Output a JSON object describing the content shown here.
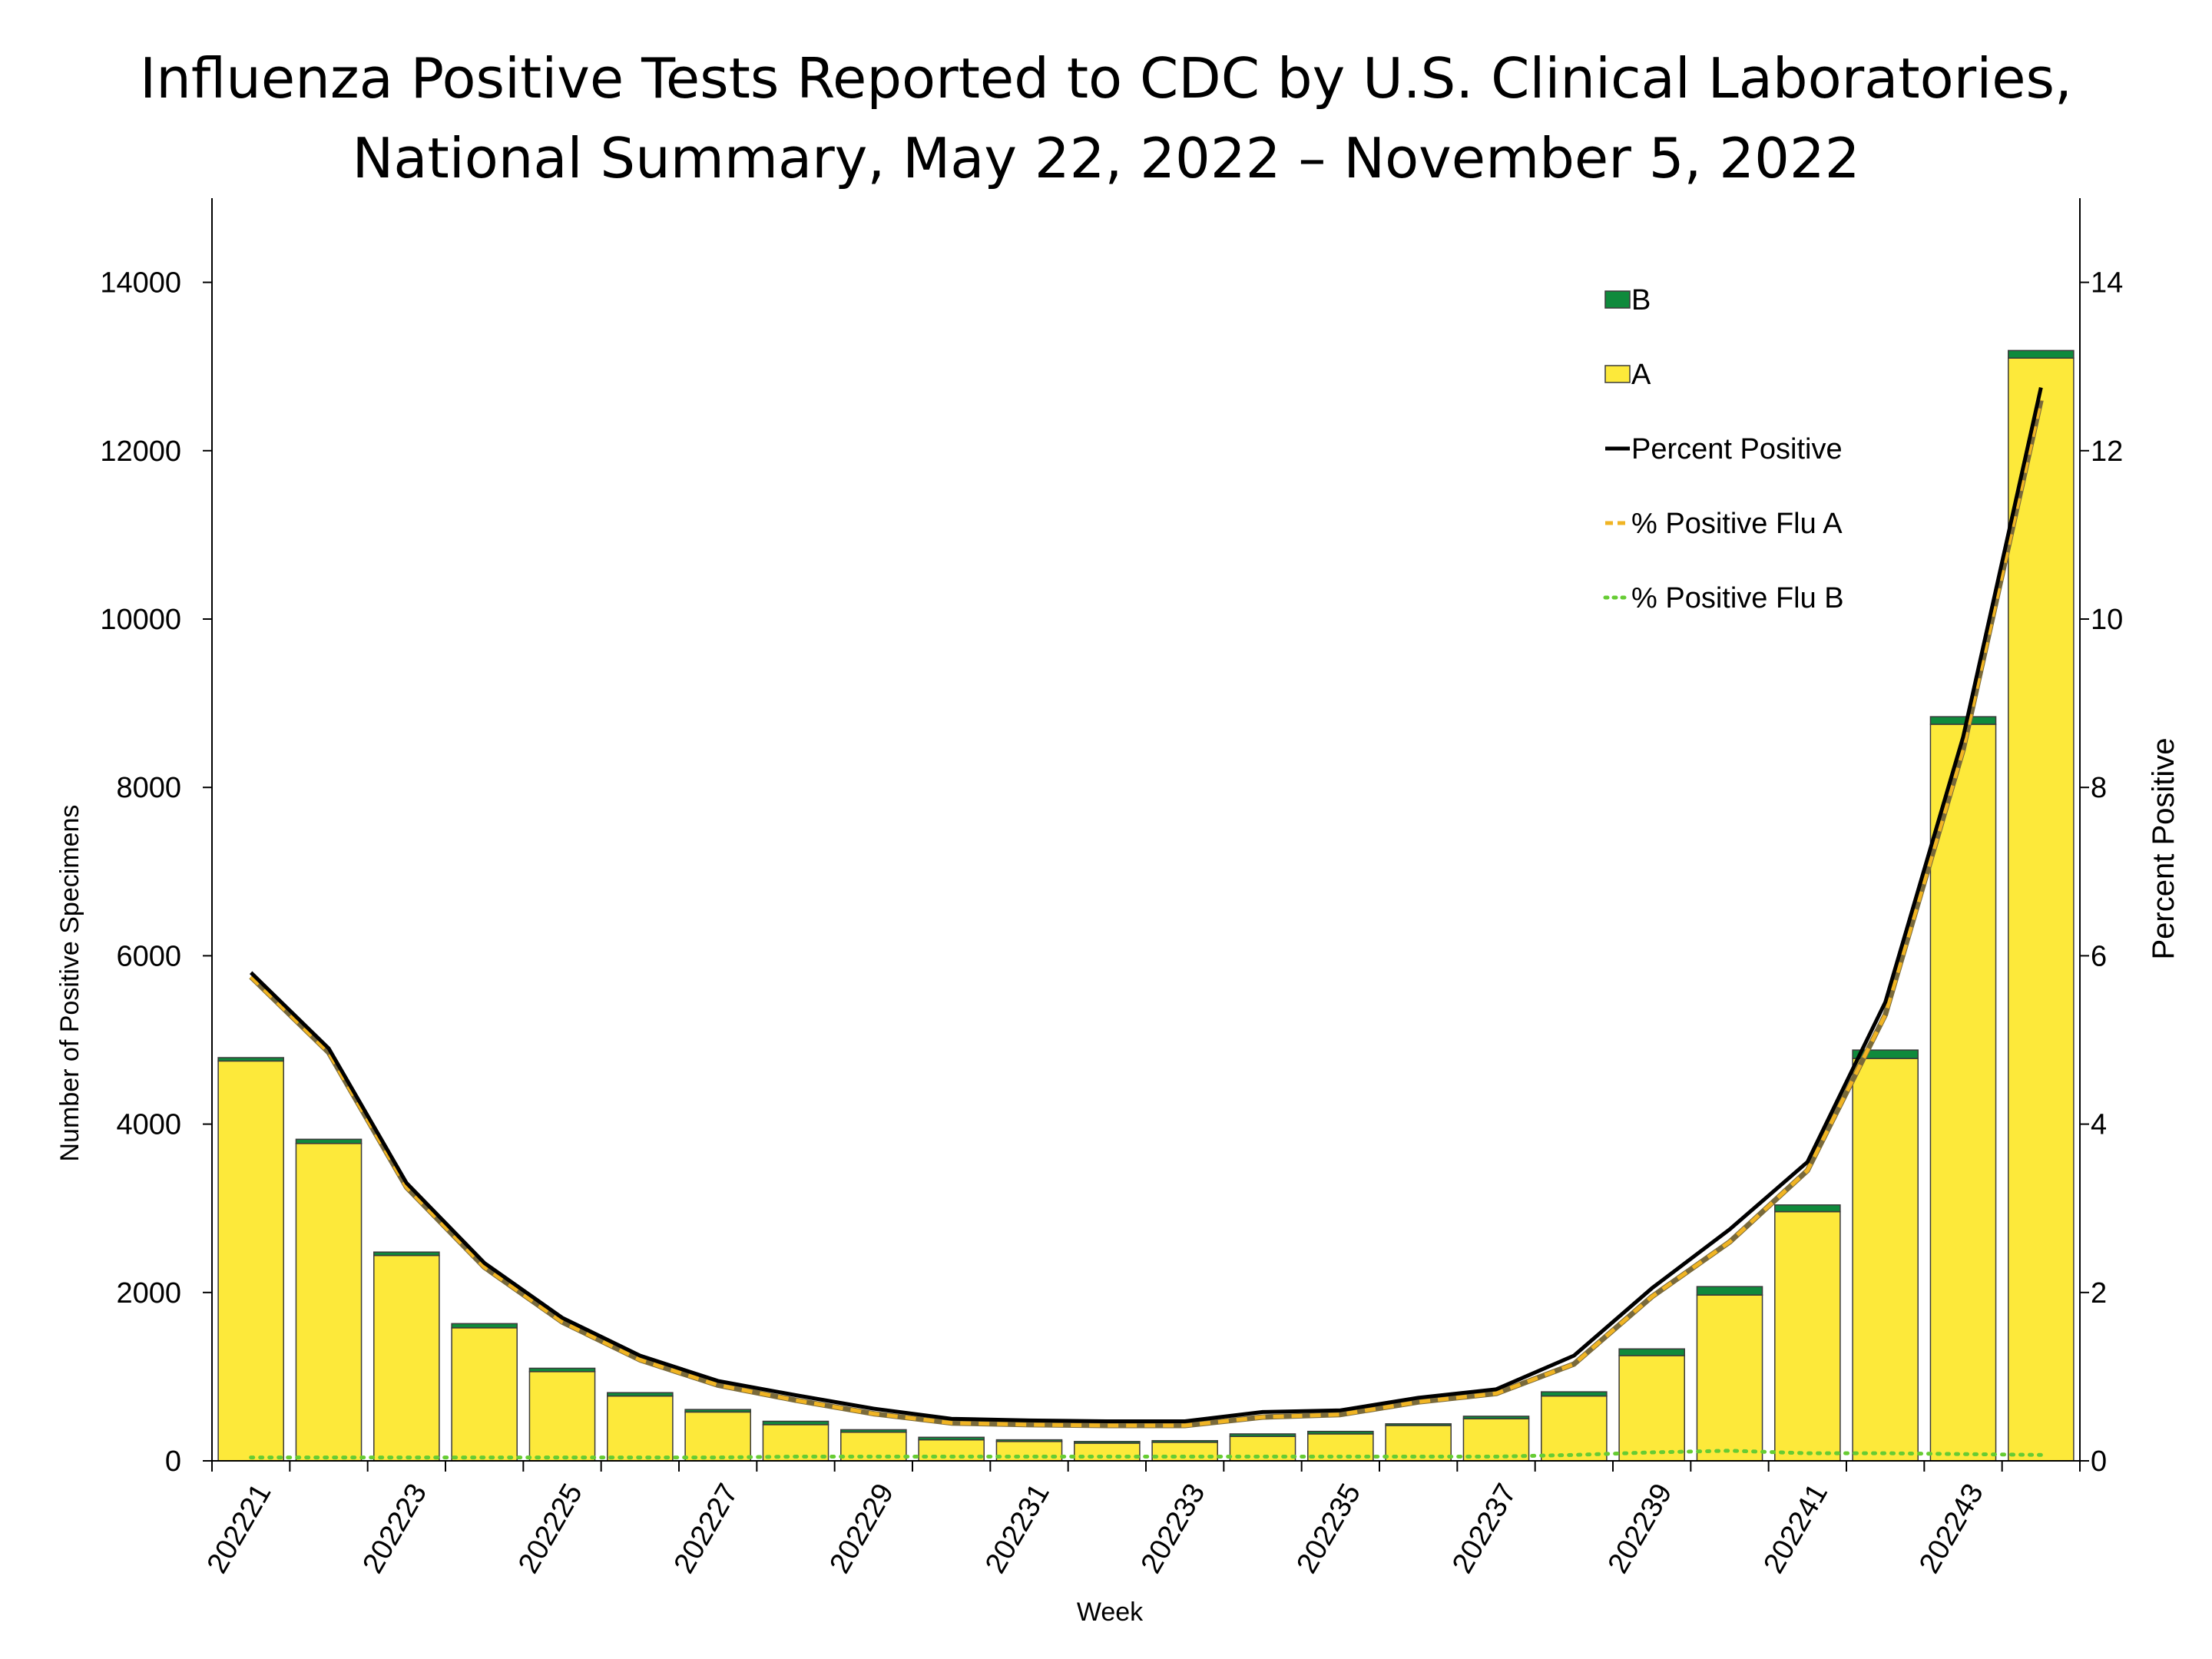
{
  "title": {
    "line1": "Influenza Positive Tests Reported to CDC by U.S. Clinical Laboratories,",
    "line2": "National Summary, May 22, 2022 – November 5, 2022"
  },
  "chart_data": {
    "type": "bar",
    "title": "Influenza Positive Tests Reported to CDC by U.S. Clinical Laboratories, National Summary, May 22, 2022 – November 5, 2022",
    "xlabel": "Week",
    "ylabel": "Number of Positive Specimens",
    "y2label": "Percent Positive",
    "ylim": [
      0,
      15000
    ],
    "y2lim": [
      0,
      15
    ],
    "yticks": [
      0,
      2000,
      4000,
      6000,
      8000,
      10000,
      12000,
      14000
    ],
    "y2ticks": [
      0,
      2,
      4,
      6,
      8,
      10,
      12,
      14
    ],
    "legend_position": "top-right",
    "categories": [
      "202221",
      "202222",
      "202223",
      "202224",
      "202225",
      "202226",
      "202227",
      "202228",
      "202229",
      "202230",
      "202231",
      "202232",
      "202233",
      "202234",
      "202235",
      "202236",
      "202237",
      "202238",
      "202239",
      "202240",
      "202241",
      "202242",
      "202243",
      "202244"
    ],
    "xtick_labels": [
      "202221",
      "202223",
      "202225",
      "202227",
      "202229",
      "202231",
      "202233",
      "202235",
      "202237",
      "202239",
      "202241",
      "202243"
    ],
    "series": [
      {
        "name": "B",
        "kind": "bar",
        "stack": "positives",
        "color": "#0f8a3c",
        "values": [
          40,
          50,
          40,
          50,
          40,
          40,
          30,
          40,
          30,
          30,
          20,
          20,
          20,
          30,
          30,
          20,
          30,
          50,
          80,
          100,
          80,
          100,
          90,
          90
        ]
      },
      {
        "name": "A",
        "kind": "bar",
        "stack": "positives",
        "color": "#fde93a",
        "values": [
          4750,
          3770,
          2440,
          1580,
          1060,
          770,
          580,
          430,
          340,
          250,
          230,
          210,
          220,
          290,
          320,
          420,
          500,
          770,
          1250,
          1970,
          2960,
          4780,
          8750,
          13100
        ]
      },
      {
        "name": "Percent Positive",
        "kind": "line",
        "axis": "right",
        "color": "#000000",
        "style": "solid",
        "values": [
          5.8,
          4.9,
          3.3,
          2.35,
          1.7,
          1.25,
          0.95,
          0.78,
          0.62,
          0.5,
          0.48,
          0.47,
          0.47,
          0.58,
          0.6,
          0.75,
          0.85,
          1.25,
          2.05,
          2.75,
          3.55,
          5.45,
          8.6,
          12.75
        ]
      },
      {
        "name": "% Positive Flu A",
        "kind": "line",
        "axis": "right",
        "color": "#f0b423",
        "style": "dashed",
        "values": [
          5.75,
          4.85,
          3.25,
          2.3,
          1.65,
          1.2,
          0.9,
          0.72,
          0.56,
          0.45,
          0.43,
          0.42,
          0.42,
          0.52,
          0.55,
          0.7,
          0.8,
          1.15,
          1.95,
          2.6,
          3.45,
          5.3,
          8.45,
          12.6
        ]
      },
      {
        "name": "% Positive Flu B",
        "kind": "line",
        "axis": "right",
        "color": "#66cc33",
        "style": "dotted",
        "values": [
          0.04,
          0.04,
          0.04,
          0.04,
          0.04,
          0.04,
          0.04,
          0.05,
          0.05,
          0.05,
          0.05,
          0.05,
          0.05,
          0.05,
          0.05,
          0.05,
          0.05,
          0.07,
          0.1,
          0.12,
          0.09,
          0.09,
          0.08,
          0.07
        ]
      }
    ]
  }
}
